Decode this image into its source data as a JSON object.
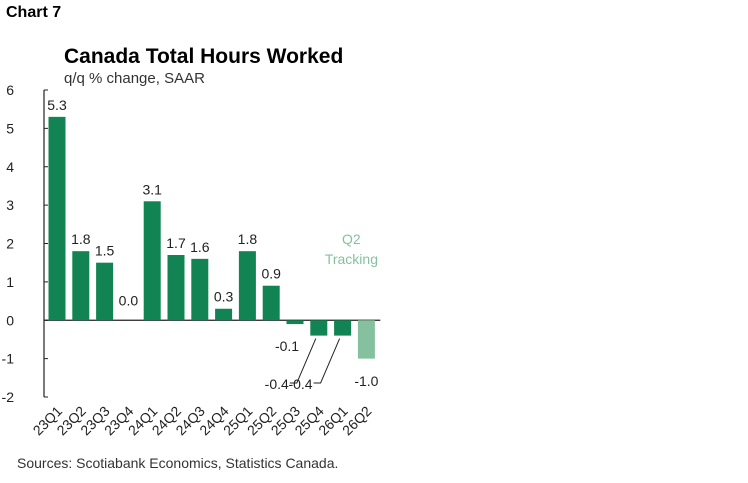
{
  "header": {
    "chart_number": "Chart 7"
  },
  "footer": {
    "source": "Sources: Scotiabank Economics, Statistics Canada."
  },
  "colors": {
    "actual": "#128453",
    "tracking": "#86c19f",
    "axis": "#222222"
  },
  "annotation": {
    "tracking_line1": "Q2",
    "tracking_line2": "Tracking"
  },
  "chart_data": {
    "type": "bar",
    "title": "Canada Total Hours Worked",
    "subtitle": "q/q % change, SAAR",
    "xlabel": "",
    "ylabel": "",
    "ylim": [
      -2,
      6
    ],
    "yticks": [
      -2,
      -1,
      0,
      1,
      2,
      3,
      4,
      5,
      6
    ],
    "categories": [
      "23Q1",
      "23Q2",
      "23Q3",
      "23Q4",
      "24Q1",
      "24Q2",
      "24Q3",
      "24Q4",
      "25Q1",
      "25Q2",
      "25Q3",
      "25Q4",
      "26Q1",
      "26Q2"
    ],
    "values": [
      5.3,
      1.8,
      1.5,
      0.0,
      3.1,
      1.7,
      1.6,
      0.3,
      1.8,
      0.9,
      -0.1,
      -0.4,
      -0.4,
      -1.0
    ],
    "labels": [
      "5.3",
      "1.8",
      "1.5",
      "0.0",
      "3.1",
      "1.7",
      "1.6",
      "0.3",
      "1.8",
      "0.9",
      "-0.1",
      "-0.4",
      "-0.4",
      "-1.0"
    ],
    "tracking_index": 13,
    "grid": false,
    "legend": "none"
  }
}
